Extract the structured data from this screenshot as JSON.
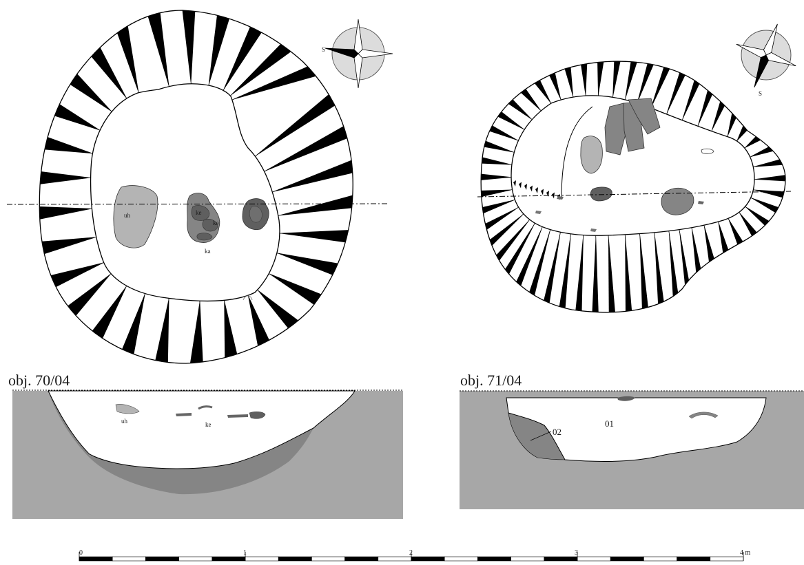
{
  "features": [
    {
      "title": "obj. 70/04",
      "plan_labels": {
        "uh": "uh",
        "ke1": "ke",
        "ke2": "ke",
        "ka": "ka"
      },
      "section_labels": {
        "uh": "uh",
        "ke": "ke"
      }
    },
    {
      "title": "obj. 71/04",
      "section_labels": {
        "layer1": "01",
        "layer2": "02"
      }
    }
  ],
  "north_arrow": {
    "letter": "S"
  },
  "scale_bar": {
    "ticks": [
      "0",
      "1",
      "2",
      "3"
    ],
    "end_label": "4 m"
  },
  "colors": {
    "soil": "#a7a7a7",
    "dark_fill": "#5f5f5f",
    "mid_fill": "#858585",
    "light_fill": "#b4b4b4",
    "hachure": "#000000"
  }
}
